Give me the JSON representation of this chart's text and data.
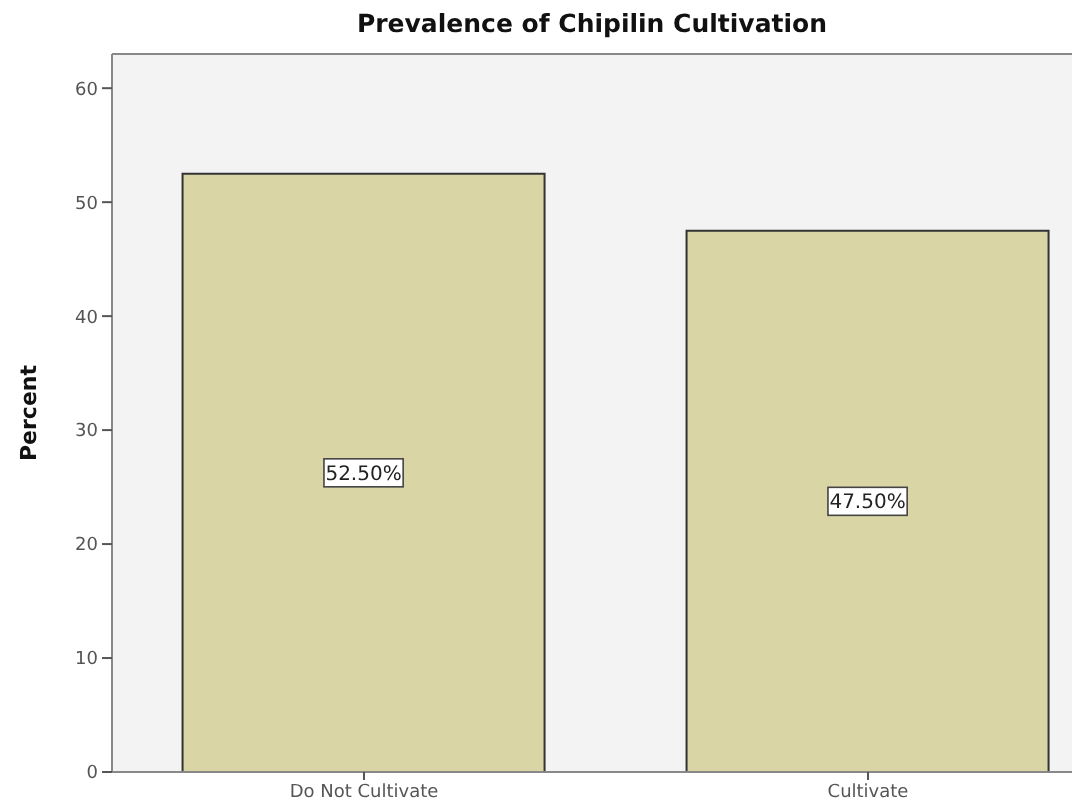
{
  "chart_data": {
    "type": "bar",
    "title": "Prevalence of Chipilin Cultivation",
    "ylabel": "Percent",
    "categories": [
      "Do Not Cultivate",
      "Cultivate"
    ],
    "values": [
      52.5,
      47.5
    ],
    "value_labels": [
      "52.50%",
      "47.50%"
    ],
    "color": "#d9d5a5",
    "ylim": [
      0,
      63
    ],
    "yticks": [
      0,
      10,
      20,
      30,
      40,
      50,
      60
    ]
  }
}
